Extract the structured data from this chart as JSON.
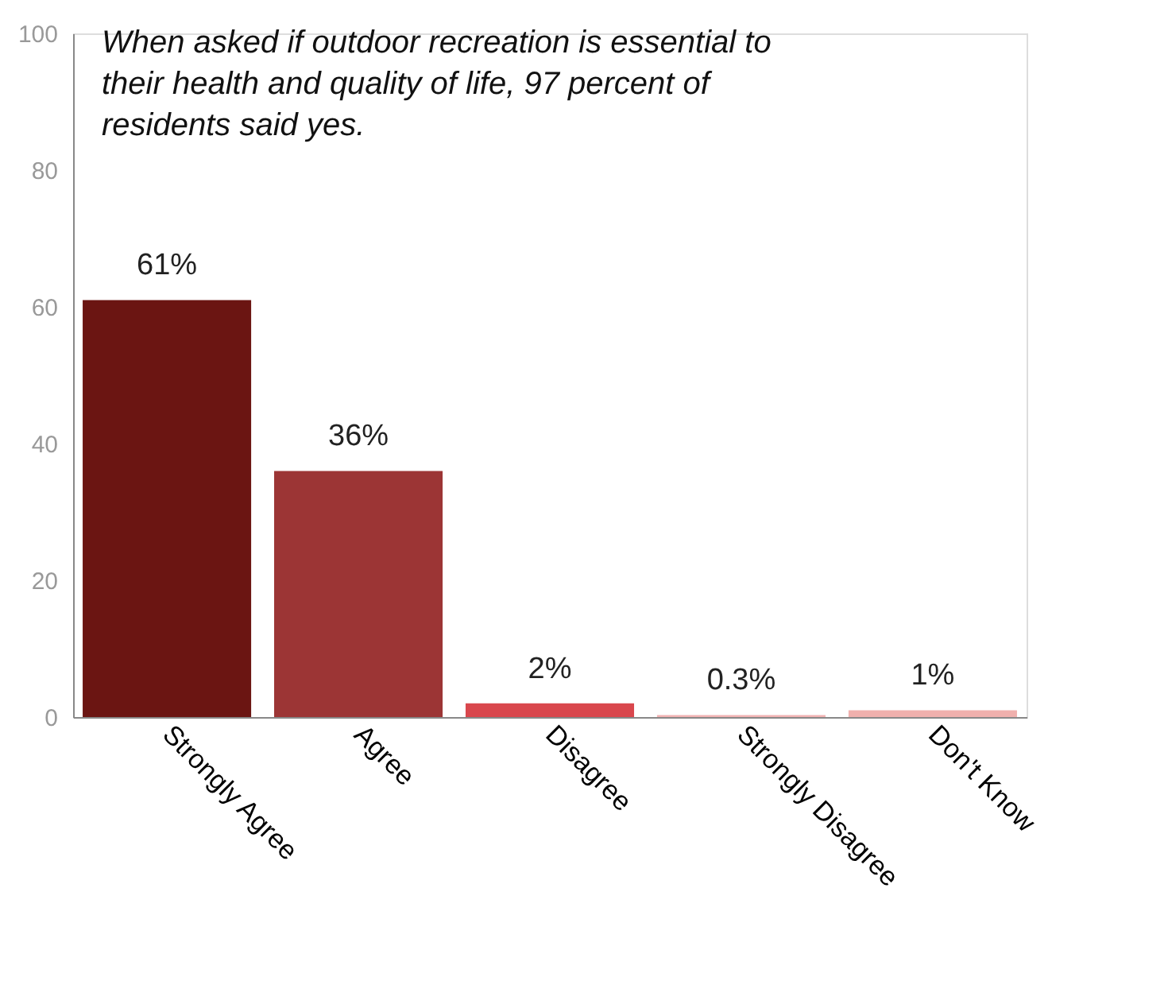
{
  "chart_data": {
    "type": "bar",
    "categories": [
      "Strongly Agree",
      "Agree",
      "Disagree",
      "Strongly Disagree",
      "Don't Know"
    ],
    "values": [
      61,
      36,
      2,
      0.3,
      1
    ],
    "colors": [
      "#6b1512",
      "#9c3535",
      "#d9474d",
      "#f2b3b3",
      "#f0b0ad"
    ],
    "value_labels": [
      "61%",
      "36%",
      "2%",
      "0.3%",
      "1%"
    ],
    "ylim": [
      0,
      100
    ],
    "yticks": [
      0,
      20,
      40,
      60,
      80,
      100
    ],
    "grid": false,
    "legend": false,
    "annotations": [
      "When asked if outdoor recreation is essential to their health and quality of life, 97 percent of residents said yes."
    ]
  }
}
